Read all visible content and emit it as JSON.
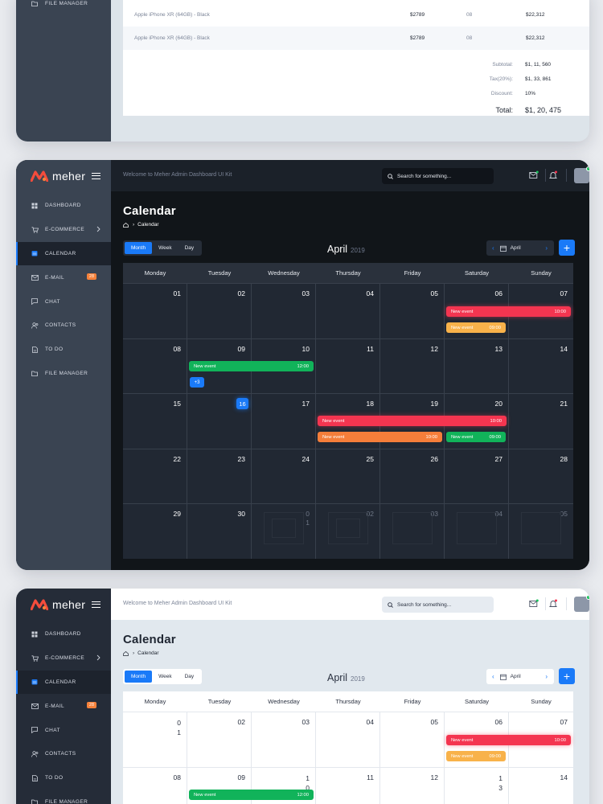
{
  "colors": {
    "accent": "#1a7af8",
    "event_red": "#f43550",
    "event_green": "#11b35a",
    "event_yellow": "#f8b24a",
    "event_orange": "#f57e3a",
    "badge_orange": "#f6823b"
  },
  "top_frame": {
    "sidebar_item": "FILE MANAGER",
    "invoice_rows": [
      {
        "product": "Apple iPhone XR (64GB) - Black",
        "price": "$2789",
        "qty": "08",
        "total": "$22,312"
      },
      {
        "product": "Apple iPhone XR (64GB) - Black",
        "price": "$2789",
        "qty": "08",
        "total": "$22,312"
      }
    ],
    "summary": {
      "subtotal_label": "Subtotal:",
      "subtotal": "$1, 11, 560",
      "tax_label": "Tax(20%):",
      "tax": "$1, 33, 861",
      "discount_label": "Discount:",
      "discount": "10%",
      "total_label": "Total:",
      "total": "$1, 20, 475"
    }
  },
  "app": {
    "brand": "meher",
    "welcome": "Welcome to Meher Admin Dashboard UI Kit",
    "search_placeholder": "Search for something...",
    "nav": [
      {
        "label": "DASHBOARD",
        "icon": "grid-icon"
      },
      {
        "label": "E-COMMERCE",
        "icon": "cart-icon",
        "chevron": true
      },
      {
        "label": "CALENDAR",
        "icon": "calendar-icon",
        "active": true
      },
      {
        "label": "E-MAIL",
        "icon": "mail-icon",
        "badge": "28"
      },
      {
        "label": "CHAT",
        "icon": "chat-icon"
      },
      {
        "label": "CONTACTS",
        "icon": "contacts-icon"
      },
      {
        "label": "TO DO",
        "icon": "todo-icon"
      },
      {
        "label": "FILE MANAGER",
        "icon": "folder-icon"
      }
    ],
    "page_title": "Calendar",
    "breadcrumb": "Calendar",
    "views": [
      "Month",
      "Week",
      "Day"
    ],
    "month": "April",
    "year": "2019",
    "picker_month": "April",
    "add_label": "+",
    "weekdays": [
      "Monday",
      "Tuesday",
      "Wednesday",
      "Thursday",
      "Friday",
      "Saturday",
      "Sunday"
    ],
    "weeks_dark": [
      [
        "01",
        "02",
        "03",
        "04",
        "05",
        "06",
        "07"
      ],
      [
        "08",
        "09",
        "10",
        "11",
        "12",
        "13",
        "14"
      ],
      [
        "15",
        "16",
        "17",
        "18",
        "19",
        "20",
        "21"
      ],
      [
        "22",
        "23",
        "24",
        "25",
        "26",
        "27",
        "28"
      ],
      [
        "29",
        "30",
        "0\n1",
        "02",
        "03",
        "04",
        "05"
      ]
    ],
    "weeks_light": [
      [
        "0\n1",
        "02",
        "03",
        "04",
        "05",
        "06",
        "07"
      ],
      [
        "08",
        "09",
        "1\n0",
        "11",
        "12",
        "1\n3",
        "14"
      ]
    ],
    "events": {
      "e1": {
        "title": "New event",
        "time": "10:00"
      },
      "e2": {
        "title": "New event",
        "time": "09:00"
      },
      "e3": {
        "title": "New event",
        "time": "12:00"
      },
      "e4": {
        "title": "New event",
        "time": "10:00"
      },
      "e5": {
        "title": "New event",
        "time": "10:00"
      },
      "e6": {
        "title": "New event",
        "time": "09:00"
      }
    },
    "more_label": "+3",
    "today": "16"
  }
}
